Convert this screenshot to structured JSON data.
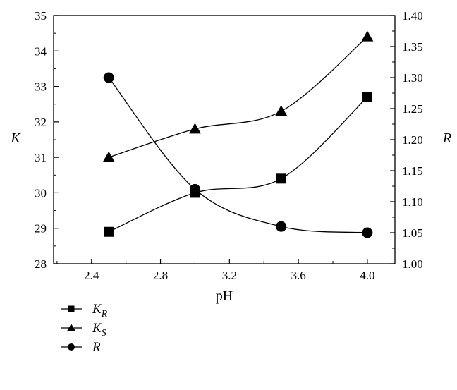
{
  "chart_data": {
    "type": "line",
    "xlabel": "pH",
    "ylabel_left": "K",
    "ylabel_right": "R",
    "x_ticks": [
      "2.4",
      "2.8",
      "3.2",
      "3.6",
      "4.0"
    ],
    "y_left_ticks": [
      "28",
      "29",
      "30",
      "31",
      "32",
      "33",
      "34",
      "35"
    ],
    "y_right_ticks": [
      "1.00",
      "1.05",
      "1.10",
      "1.15",
      "1.20",
      "1.25",
      "1.30",
      "1.35",
      "1.40"
    ],
    "xlim": [
      2.18,
      4.16
    ],
    "ylim_left": [
      28,
      35
    ],
    "ylim_right": [
      1.0,
      1.4
    ],
    "legend_position": "below-left",
    "series": [
      {
        "name": "K",
        "sub": "R",
        "marker": "square",
        "axis": "left",
        "x": [
          2.5,
          3.0,
          3.5,
          4.0
        ],
        "values": [
          28.9,
          30.0,
          30.4,
          32.7
        ]
      },
      {
        "name": "K",
        "sub": "S",
        "marker": "triangle",
        "axis": "left",
        "x": [
          2.5,
          3.0,
          3.5,
          4.0
        ],
        "values": [
          31.0,
          31.8,
          32.3,
          34.4
        ]
      },
      {
        "name": "R",
        "sub": "",
        "marker": "circle",
        "axis": "right",
        "x": [
          2.5,
          3.0,
          3.5,
          4.0
        ],
        "values": [
          1.3,
          1.12,
          1.06,
          1.05
        ]
      }
    ]
  }
}
